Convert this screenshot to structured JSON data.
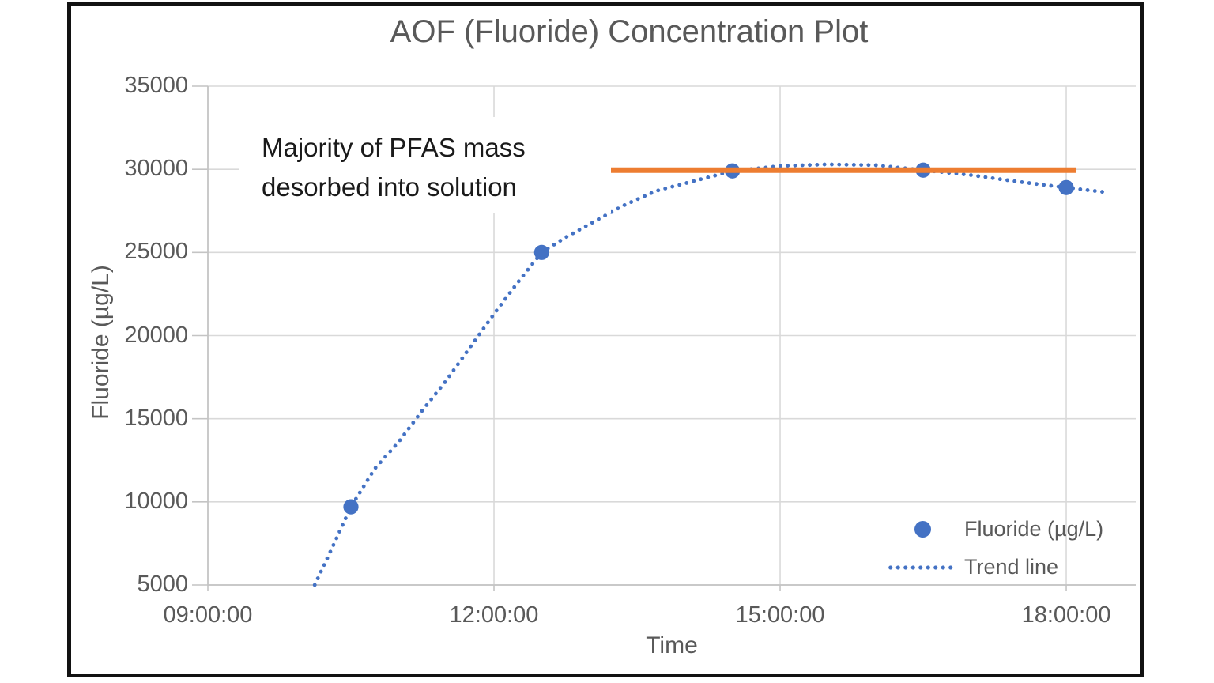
{
  "chart_data": {
    "type": "scatter",
    "title": "AOF (Fluoride) Concentration Plot",
    "xlabel": "Time",
    "ylabel": "Fluoride (µg/L)",
    "ylim": [
      5000,
      35000
    ],
    "y_ticks": [
      5000,
      10000,
      15000,
      20000,
      25000,
      30000,
      35000
    ],
    "x_ticks": [
      {
        "hour": 9,
        "label": "09:00:00"
      },
      {
        "hour": 12,
        "label": "12:00:00"
      },
      {
        "hour": 15,
        "label": "15:00:00"
      },
      {
        "hour": 18,
        "label": "18:00:00"
      }
    ],
    "grid": true,
    "legend_position": "lower right",
    "series": [
      {
        "name": "Fluoride (µg/L)",
        "type": "scatter",
        "marker": "circle",
        "color": "#4472C4",
        "x_hours": [
          10.5,
          12.5,
          14.5,
          16.5,
          18.0
        ],
        "values": [
          9700,
          25000,
          29900,
          29950,
          28900
        ]
      },
      {
        "name": "Trend line",
        "type": "dotted-curve",
        "color": "#4472C4",
        "points": [
          [
            10.12,
            5000
          ],
          [
            10.3,
            7200
          ],
          [
            10.5,
            9700
          ],
          [
            10.75,
            12000
          ],
          [
            11.0,
            13600
          ],
          [
            11.25,
            15500
          ],
          [
            11.5,
            17300
          ],
          [
            11.75,
            19300
          ],
          [
            12.0,
            21300
          ],
          [
            12.25,
            23200
          ],
          [
            12.5,
            25000
          ],
          [
            12.75,
            25900
          ],
          [
            13.0,
            26700
          ],
          [
            13.35,
            27800
          ],
          [
            13.7,
            28700
          ],
          [
            14.0,
            29150
          ],
          [
            14.5,
            29900
          ],
          [
            15.0,
            30200
          ],
          [
            15.5,
            30300
          ],
          [
            16.0,
            30250
          ],
          [
            16.5,
            29950
          ],
          [
            17.0,
            29650
          ],
          [
            17.5,
            29250
          ],
          [
            18.0,
            28900
          ],
          [
            18.45,
            28600
          ]
        ]
      },
      {
        "name": "Plateau highlight line",
        "type": "solid-line",
        "color": "#ED7D31",
        "points": [
          [
            13.1,
            29950
          ],
          [
            18.1,
            29950
          ]
        ]
      }
    ],
    "annotation": {
      "lines": [
        "Majority of PFAS mass",
        "desorbed into solution"
      ],
      "color": "#1A1A1A"
    },
    "legend": [
      {
        "label": "Fluoride (µg/L)",
        "marker": "dot",
        "color": "#4472C4"
      },
      {
        "label": "Trend line",
        "marker": "dotted-line",
        "color": "#4472C4"
      }
    ],
    "colors": {
      "grid": "#D9D9D9",
      "axis": "#C4C4C4",
      "text_gray": "#595959",
      "frame_border": "#121212",
      "point_blue": "#4472C4",
      "plateau_orange": "#ED7D31"
    }
  }
}
